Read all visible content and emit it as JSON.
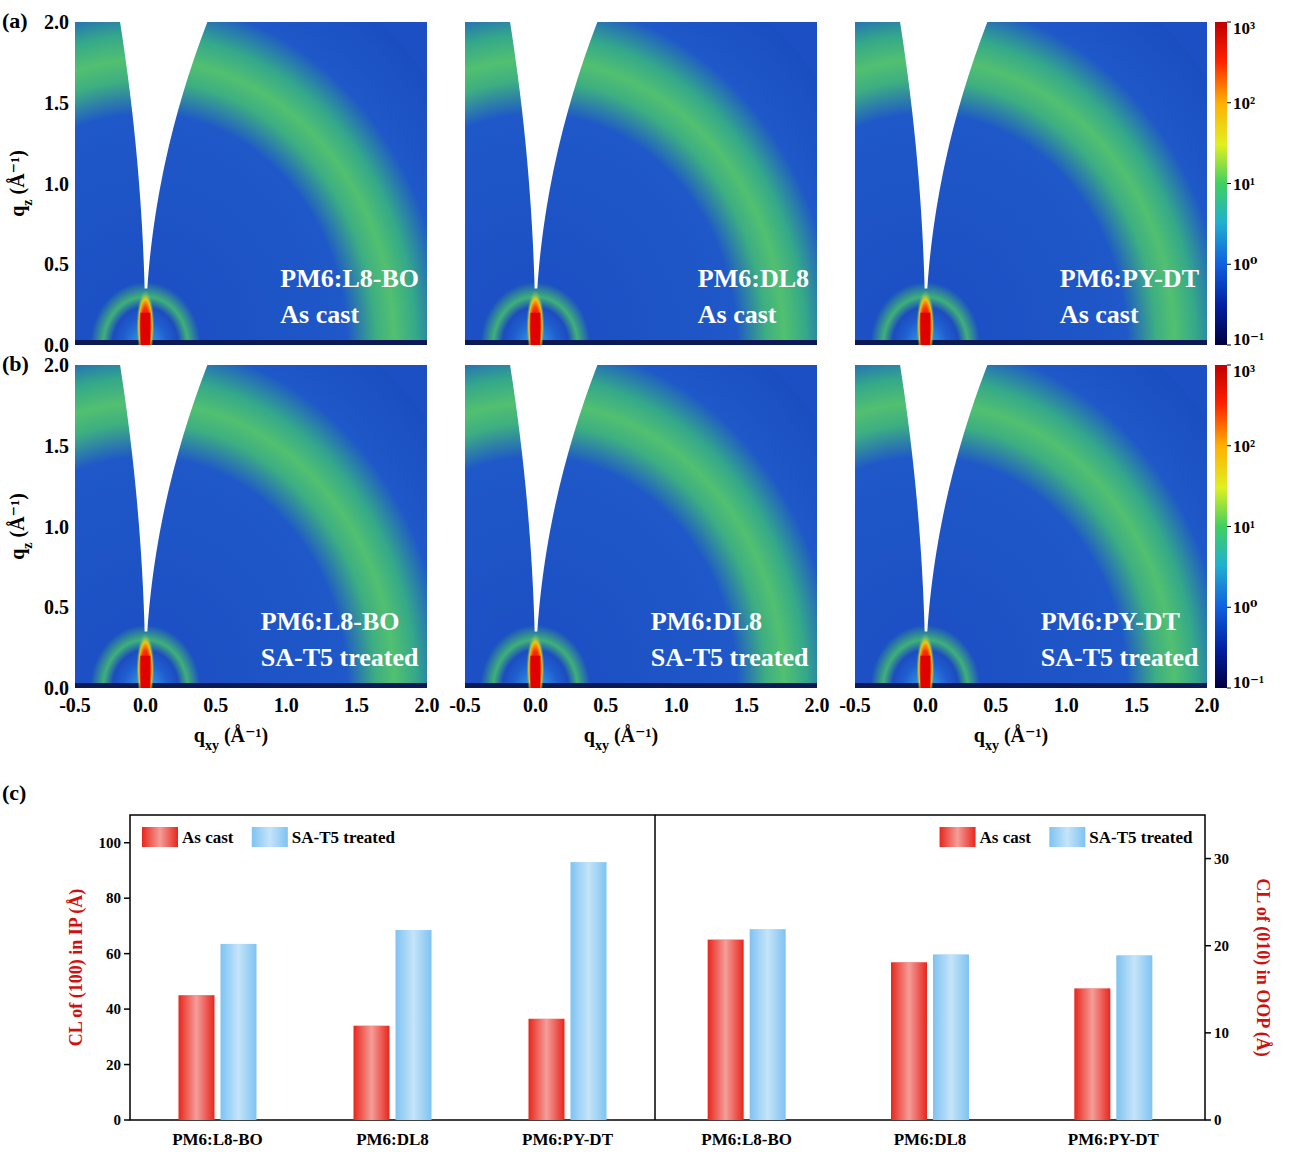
{
  "chart_data": [
    {
      "type": "heatmap",
      "panel_labels": [
        "(a)",
        "(b)"
      ],
      "xlabel": "qxy (Å⁻¹)",
      "ylabel": "qz (Å⁻¹)",
      "xlim": [
        -0.5,
        2.0
      ],
      "xticks": [
        -0.5,
        {
          "value": 0,
          "label": "0.0"
        },
        0.5,
        {
          "value": 1,
          "label": "1.0"
        },
        1.5,
        {
          "value": 2,
          "label": "2.0"
        }
      ],
      "ylim": [
        0,
        2.0
      ],
      "yticks": [
        {
          "value": 0,
          "label": "0.0"
        },
        0.5,
        {
          "value": 1,
          "label": "1.0"
        },
        1.5,
        {
          "value": 2,
          "label": "2.0"
        }
      ],
      "panels": [
        {
          "sample": "PM6:L8-BO",
          "condition": "As cast"
        },
        {
          "sample": "PM6:DL8",
          "condition": "As cast"
        },
        {
          "sample": "PM6:PY-DT",
          "condition": "As cast"
        },
        {
          "sample": "PM6:L8-BO",
          "condition": "SA-T5 treated"
        },
        {
          "sample": "PM6:DL8",
          "condition": "SA-T5 treated"
        },
        {
          "sample": "PM6:PY-DT",
          "condition": "SA-T5 treated"
        }
      ],
      "colorbar": {
        "range": [
          0.1,
          1000
        ],
        "log": true,
        "ticks": [
          {
            "value": 1000,
            "label": "10³"
          },
          {
            "value": 100,
            "label": "10²"
          },
          {
            "value": 10,
            "label": "10¹"
          },
          {
            "value": 1,
            "label": "10⁰"
          },
          {
            "value": 0.1,
            "label": "10⁻¹"
          }
        ]
      }
    },
    {
      "type": "bar",
      "panel_label": "(c)",
      "categories": [
        "PM6:L8-BO",
        "PM6:DL8",
        "PM6:PY-DT"
      ],
      "ylabel": "CL of (100) in IP (Å)",
      "ylim": [
        0,
        110
      ],
      "yticks": [
        0,
        20,
        40,
        60,
        80,
        100
      ],
      "legend": "upper left",
      "series": [
        {
          "name": "As cast",
          "color": "#e8261c",
          "values": [
            45,
            34,
            36.5
          ]
        },
        {
          "name": "SA-T5 treated",
          "color": "#7ec3f2",
          "values": [
            63.5,
            68.5,
            93
          ]
        }
      ]
    },
    {
      "type": "bar",
      "categories": [
        "PM6:L8-BO",
        "PM6:DL8",
        "PM6:PY-DT"
      ],
      "y2label": "CL of (010) in OOP (Å)",
      "y2lim": [
        0,
        35
      ],
      "y2ticks": [
        0,
        10,
        20,
        30
      ],
      "legend": "upper right",
      "series": [
        {
          "name": "As cast",
          "color": "#e8261c",
          "axis": "y2",
          "values": [
            20.7,
            18.1,
            15.1
          ]
        },
        {
          "name": "SA-T5 treated",
          "color": "#7ec3f2",
          "axis": "y2",
          "values": [
            21.9,
            19.0,
            18.9
          ]
        }
      ]
    }
  ]
}
